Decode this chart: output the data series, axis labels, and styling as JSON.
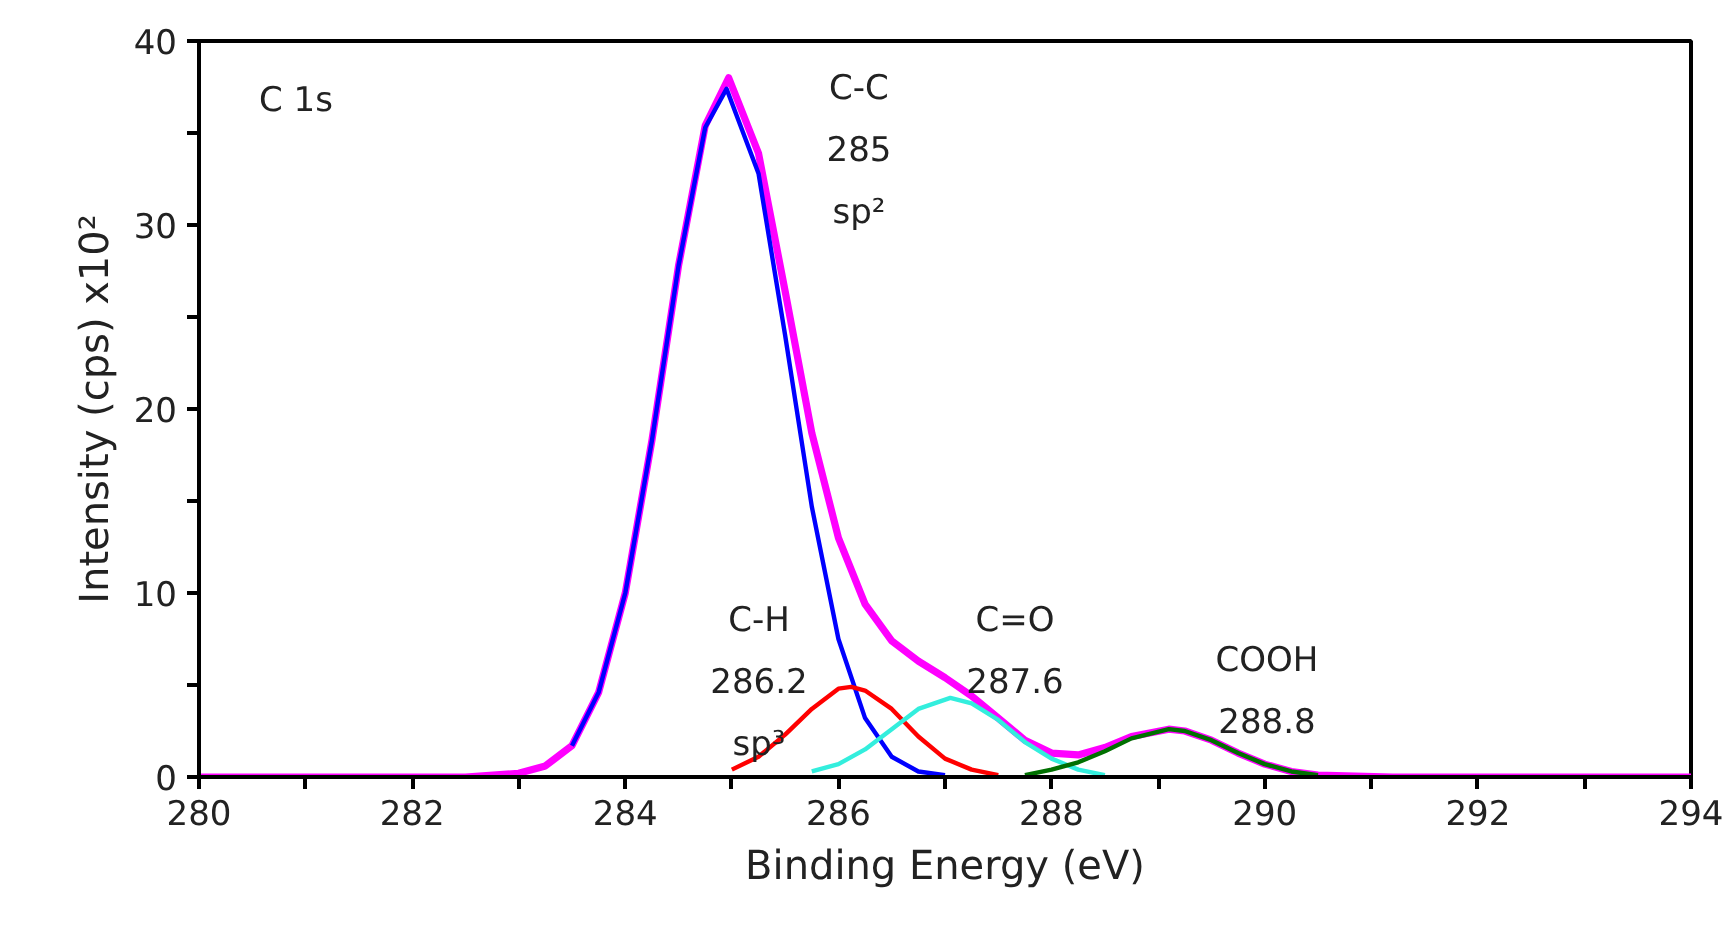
{
  "chart_data": {
    "type": "line",
    "xlabel": "Binding Energy (eV)",
    "ylabel": "Intensity (cps) x10²",
    "xlim": [
      280,
      294
    ],
    "ylim": [
      0,
      40
    ],
    "xticks": [
      280,
      {
        "value": 281,
        "label": null
      },
      282,
      {
        "value": 283,
        "label": null
      },
      284,
      {
        "value": 285,
        "label": null
      },
      286,
      {
        "value": 287,
        "label": null
      },
      288,
      {
        "value": 289,
        "label": null
      },
      290,
      {
        "value": 291,
        "label": null
      },
      292,
      {
        "value": 293,
        "label": null
      },
      294
    ],
    "yticks": [
      0,
      {
        "value": 5,
        "label": null
      },
      10,
      {
        "value": 15,
        "label": null
      },
      20,
      {
        "value": 25,
        "label": null
      },
      30,
      {
        "value": 35,
        "label": null
      },
      40
    ],
    "grid": false,
    "line_style": "solid",
    "marker": "none",
    "series": [
      {
        "color": "#ff00ff",
        "x": [
          280,
          282.5,
          283,
          283.25,
          283.5,
          283.75,
          284,
          284.25,
          284.5,
          284.75,
          284.97,
          285.25,
          285.5,
          285.75,
          286,
          286.25,
          286.5,
          286.75,
          287,
          287.25,
          287.5,
          287.75,
          288,
          288.25,
          288.5,
          288.75,
          289.1,
          289.25,
          289.5,
          289.75,
          290,
          290.25,
          290.5,
          291.2,
          294
        ],
        "values": [
          0,
          0,
          0.2,
          0.6,
          1.7,
          4.6,
          10.0,
          18.3,
          27.8,
          35.4,
          38.0,
          33.9,
          26.4,
          18.7,
          13.0,
          9.4,
          7.4,
          6.3,
          5.4,
          4.4,
          3.2,
          2.0,
          1.3,
          1.2,
          1.6,
          2.2,
          2.6,
          2.5,
          2.0,
          1.3,
          0.7,
          0.3,
          0.1,
          0,
          0
        ]
      },
      {
        "color": "#0000ff",
        "x": [
          283.5,
          283.75,
          284,
          284.25,
          284.5,
          284.75,
          284.95,
          285.25,
          285.5,
          285.75,
          286,
          286.25,
          286.5,
          286.75,
          287
        ],
        "values": [
          1.7,
          4.6,
          10.0,
          18.3,
          27.8,
          35.3,
          37.4,
          32.8,
          24.0,
          14.7,
          7.5,
          3.2,
          1.1,
          0.3,
          0.1
        ]
      },
      {
        "color": "#ff0000",
        "x": [
          285,
          285.25,
          285.5,
          285.75,
          286,
          286.12,
          286.25,
          286.5,
          286.75,
          287,
          287.25,
          287.5
        ],
        "values": [
          0.4,
          1.1,
          2.3,
          3.7,
          4.8,
          4.9,
          4.7,
          3.7,
          2.2,
          1.0,
          0.4,
          0.1
        ]
      },
      {
        "color": "#33eedd",
        "x": [
          285.75,
          286,
          286.25,
          286.5,
          286.75,
          287.05,
          287.25,
          287.5,
          287.75,
          288,
          288.25,
          288.5
        ],
        "values": [
          0.3,
          0.7,
          1.5,
          2.6,
          3.7,
          4.3,
          4.0,
          3.1,
          1.9,
          1.0,
          0.4,
          0.1
        ]
      },
      {
        "color": "#007000",
        "x": [
          287.75,
          288,
          288.25,
          288.5,
          288.75,
          289.1,
          289.25,
          289.5,
          289.75,
          290,
          290.25,
          290.5
        ],
        "values": [
          0.1,
          0.4,
          0.8,
          1.4,
          2.1,
          2.6,
          2.5,
          2.0,
          1.3,
          0.7,
          0.3,
          0.1
        ]
      }
    ],
    "annotations": [
      "C 1s",
      "C-C\n285\nsp²",
      "C-H\n286.2\nsp³",
      "C=O\n287.6",
      "COOH\n288.8"
    ]
  }
}
